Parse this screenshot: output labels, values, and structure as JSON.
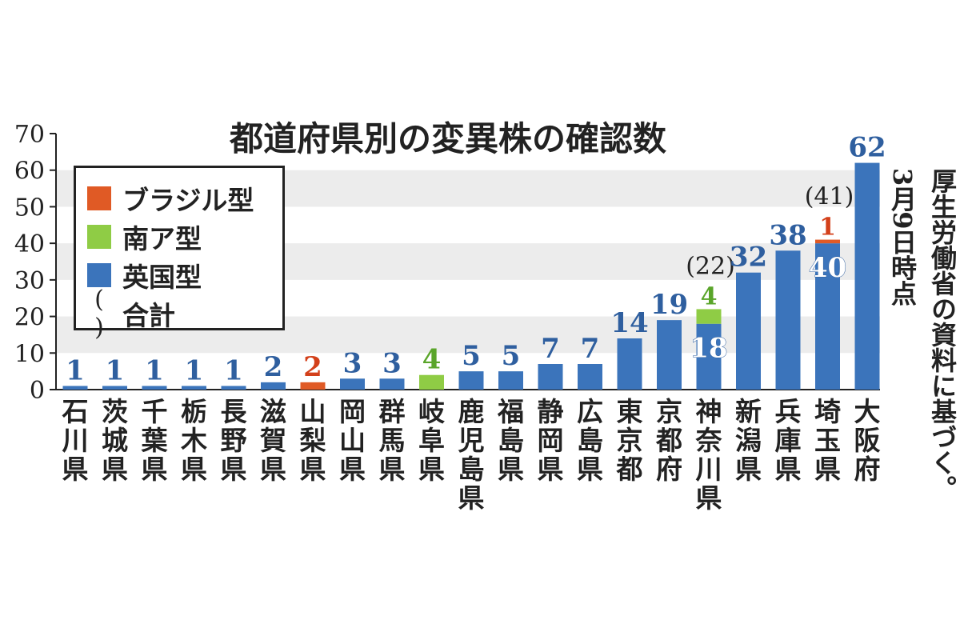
{
  "chart_data": {
    "type": "bar",
    "stacked": true,
    "title": "都道府県別の変異株の確認数",
    "ylim": [
      0,
      70
    ],
    "yticks": [
      0,
      10,
      20,
      30,
      40,
      50,
      60,
      70
    ],
    "grid_bands": true,
    "legend_position": "top-left",
    "categories": [
      "石川県",
      "茨城県",
      "千葉県",
      "栃木県",
      "長野県",
      "滋賀県",
      "山梨県",
      "岡山県",
      "群馬県",
      "岐阜県",
      "鹿児島県",
      "福島県",
      "静岡県",
      "広島県",
      "東京都",
      "京都府",
      "神奈川県",
      "新潟県",
      "兵庫県",
      "埼玉県",
      "大阪府"
    ],
    "series": [
      {
        "name": "英国型",
        "color": "#3b74bb",
        "values": [
          1,
          1,
          1,
          1,
          1,
          2,
          0,
          3,
          3,
          0,
          5,
          5,
          7,
          7,
          14,
          19,
          18,
          32,
          38,
          40,
          62
        ]
      },
      {
        "name": "南ア型",
        "color": "#8fcc45",
        "values": [
          0,
          0,
          0,
          0,
          0,
          0,
          0,
          0,
          0,
          4,
          0,
          0,
          0,
          0,
          0,
          0,
          4,
          0,
          0,
          0,
          0
        ]
      },
      {
        "name": "ブラジル型",
        "color": "#e05a25",
        "values": [
          0,
          0,
          0,
          0,
          0,
          0,
          2,
          0,
          0,
          0,
          0,
          0,
          0,
          0,
          0,
          0,
          0,
          0,
          0,
          1,
          0
        ]
      }
    ],
    "totals": [
      {
        "category": "神奈川県",
        "label": "(22)"
      },
      {
        "category": "埼玉県",
        "label": "(41)"
      }
    ]
  },
  "legend": {
    "items": [
      {
        "label": "ブラジル型",
        "color": "#e05a25"
      },
      {
        "label": "南ア型",
        "color": "#8fcc45"
      },
      {
        "label": "英国型",
        "color": "#3b74bb"
      }
    ],
    "total_symbol": "( )",
    "total_label": "合計"
  },
  "note": {
    "source": "厚生労働省の資料に基づく。",
    "date": "3月9日時点"
  }
}
